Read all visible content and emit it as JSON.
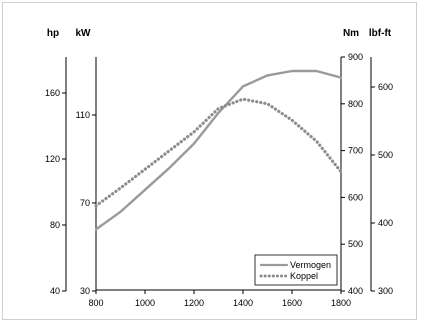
{
  "chart_data": {
    "type": "line",
    "x": [
      800,
      900,
      1000,
      1100,
      1200,
      1300,
      1400,
      1500,
      1600,
      1700,
      1800
    ],
    "xlim": [
      800,
      1800
    ],
    "x_ticks": [
      800,
      1000,
      1200,
      1400,
      1600,
      1800
    ],
    "axes": {
      "left_outer": {
        "unit": "hp",
        "ticks": [
          40,
          80,
          120,
          160
        ]
      },
      "left_inner": {
        "unit": "kW",
        "ticks": [
          30,
          70,
          110
        ]
      },
      "right_inner": {
        "unit": "Nm",
        "ticks": [
          400,
          500,
          600,
          700,
          800,
          900
        ]
      },
      "right_outer": {
        "unit": "lbf-ft",
        "ticks": [
          300,
          400,
          500,
          600
        ]
      }
    },
    "series": [
      {
        "name": "Vermogen",
        "axis": "left_inner",
        "style": "solid",
        "color": "#9a9a9a",
        "values": [
          58,
          66,
          76,
          86,
          97,
          111,
          123,
          128,
          130,
          130,
          127
        ]
      },
      {
        "name": "Koppel",
        "axis": "right_inner",
        "style": "dotted",
        "color": "#8c8c8c",
        "values": [
          582,
          620,
          660,
          700,
          740,
          790,
          810,
          800,
          765,
          720,
          655
        ]
      }
    ],
    "legend": "bottom-right"
  }
}
